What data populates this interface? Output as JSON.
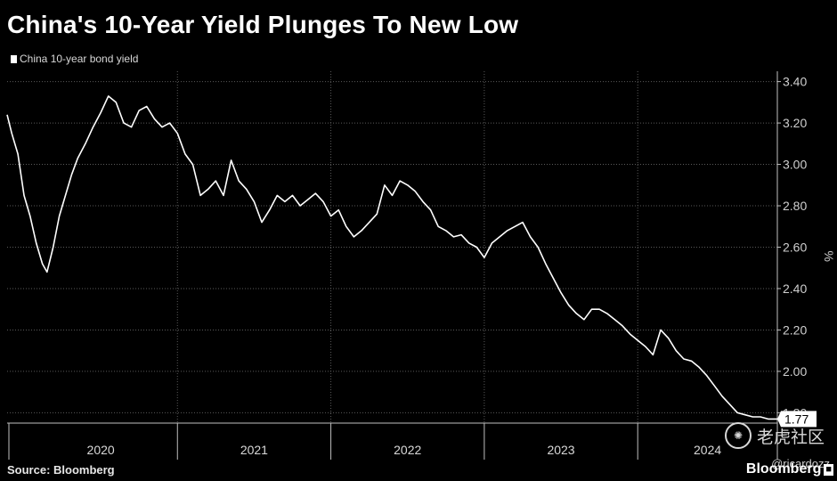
{
  "header": {
    "title": "China's 10-Year Yield Plunges To New Low"
  },
  "footer": {
    "source": "Source: Bloomberg",
    "brand": "Bloomberg",
    "brand_tag": "■"
  },
  "watermark": {
    "site": "老虎社区",
    "handle": "@ricardozz",
    "icon": "tiger-icon"
  },
  "colors": {
    "background": "#000000",
    "line": "#ffffff",
    "grid": "#5a5a5a"
  },
  "chart_data": {
    "type": "line",
    "title": "China's 10-Year Yield Plunges To New Low",
    "xlabel": "",
    "ylabel": "%",
    "ylim": [
      1.75,
      3.45
    ],
    "xlim": [
      2019.89,
      2024.91
    ],
    "yticks": [
      1.8,
      2.0,
      2.2,
      2.4,
      2.6,
      2.8,
      3.0,
      3.2,
      3.4
    ],
    "ytick_labels": [
      "1.80",
      "2.00",
      "2.20",
      "2.40",
      "2.60",
      "2.80",
      "3.00",
      "3.20",
      "3.40"
    ],
    "x_categories": [
      "2020",
      "2021",
      "2022",
      "2023",
      "2024"
    ],
    "year_bounds": [
      2020.0,
      2021.0,
      2022.0,
      2023.0,
      2024.0
    ],
    "grid": true,
    "last_value_label": "1.77",
    "series": [
      {
        "name": "China 10-year bond yield",
        "x": [
          2019.89,
          2019.92,
          2019.96,
          2020.0,
          2020.04,
          2020.08,
          2020.12,
          2020.15,
          2020.19,
          2020.23,
          2020.27,
          2020.31,
          2020.35,
          2020.4,
          2020.45,
          2020.5,
          2020.55,
          2020.6,
          2020.65,
          2020.7,
          2020.75,
          2020.8,
          2020.85,
          2020.9,
          2020.95,
          2021.0,
          2021.05,
          2021.1,
          2021.15,
          2021.2,
          2021.25,
          2021.3,
          2021.35,
          2021.4,
          2021.45,
          2021.5,
          2021.55,
          2021.6,
          2021.65,
          2021.7,
          2021.75,
          2021.8,
          2021.85,
          2021.9,
          2021.95,
          2022.0,
          2022.05,
          2022.1,
          2022.15,
          2022.2,
          2022.25,
          2022.3,
          2022.35,
          2022.4,
          2022.45,
          2022.5,
          2022.55,
          2022.6,
          2022.65,
          2022.7,
          2022.75,
          2022.8,
          2022.85,
          2022.9,
          2022.95,
          2023.0,
          2023.05,
          2023.1,
          2023.15,
          2023.2,
          2023.25,
          2023.3,
          2023.35,
          2023.4,
          2023.45,
          2023.5,
          2023.55,
          2023.6,
          2023.65,
          2023.7,
          2023.75,
          2023.8,
          2023.85,
          2023.9,
          2023.95,
          2024.0,
          2024.05,
          2024.1,
          2024.15,
          2024.2,
          2024.25,
          2024.3,
          2024.35,
          2024.4,
          2024.45,
          2024.5,
          2024.55,
          2024.6,
          2024.65,
          2024.7,
          2024.75,
          2024.8,
          2024.85,
          2024.88,
          2024.91
        ],
        "values": [
          3.24,
          3.15,
          3.05,
          2.85,
          2.75,
          2.62,
          2.52,
          2.48,
          2.6,
          2.75,
          2.85,
          2.95,
          3.03,
          3.1,
          3.18,
          3.25,
          3.33,
          3.3,
          3.2,
          3.18,
          3.26,
          3.28,
          3.22,
          3.18,
          3.2,
          3.15,
          3.05,
          3.0,
          2.85,
          2.88,
          2.92,
          2.85,
          3.02,
          2.92,
          2.88,
          2.82,
          2.72,
          2.78,
          2.85,
          2.82,
          2.85,
          2.8,
          2.83,
          2.86,
          2.82,
          2.75,
          2.78,
          2.7,
          2.65,
          2.68,
          2.72,
          2.76,
          2.9,
          2.85,
          2.92,
          2.9,
          2.87,
          2.82,
          2.78,
          2.7,
          2.68,
          2.65,
          2.66,
          2.62,
          2.6,
          2.55,
          2.62,
          2.65,
          2.68,
          2.7,
          2.72,
          2.65,
          2.6,
          2.52,
          2.45,
          2.38,
          2.32,
          2.28,
          2.25,
          2.3,
          2.3,
          2.28,
          2.25,
          2.22,
          2.18,
          2.15,
          2.12,
          2.08,
          2.2,
          2.16,
          2.1,
          2.06,
          2.05,
          2.02,
          1.98,
          1.93,
          1.88,
          1.84,
          1.8,
          1.79,
          1.78,
          1.78,
          1.77,
          1.77,
          1.77
        ]
      }
    ]
  }
}
